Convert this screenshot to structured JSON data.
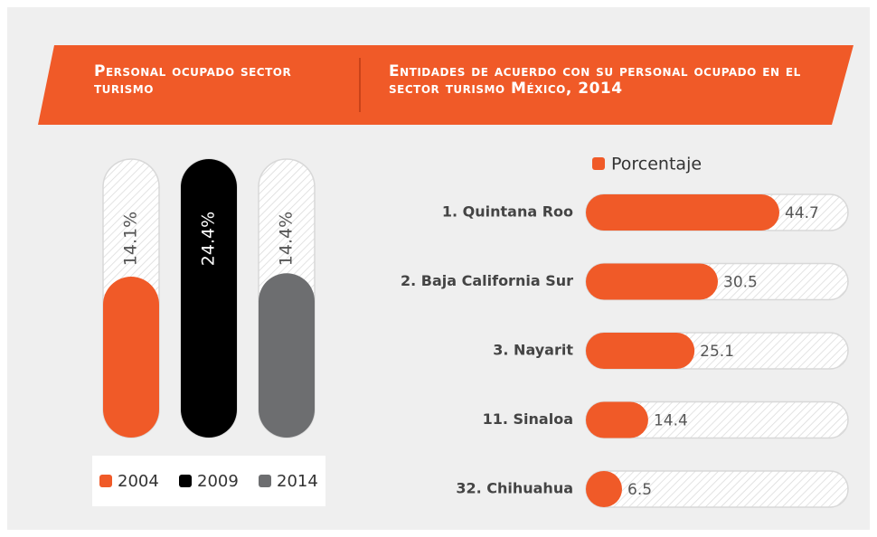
{
  "chart_data": [
    {
      "type": "bar",
      "orientation": "vertical",
      "title": "Personal ocupado sector turismo",
      "categories": [
        "2004",
        "2009",
        "2014"
      ],
      "values": [
        14.1,
        24.4,
        14.4
      ],
      "value_labels": [
        "14.1%",
        "24.4%",
        "14.4%"
      ],
      "colors": [
        "#f05a28",
        "#000000",
        "#6d6e70"
      ],
      "legend": "bottom"
    },
    {
      "type": "bar",
      "orientation": "horizontal",
      "title": "Entidades de acuerdo con su personal ocupado en el sector turismo México, 2014",
      "categories": [
        "1. Quintana Roo",
        "2. Baja California Sur",
        "3. Nayarit",
        "11. Sinaloa",
        "32. Chihuahua"
      ],
      "series": [
        {
          "name": "Porcentaje",
          "color": "#f05a28",
          "values": [
            44.7,
            30.5,
            25.1,
            14.4,
            6.5
          ]
        }
      ],
      "legend": "top"
    }
  ]
}
